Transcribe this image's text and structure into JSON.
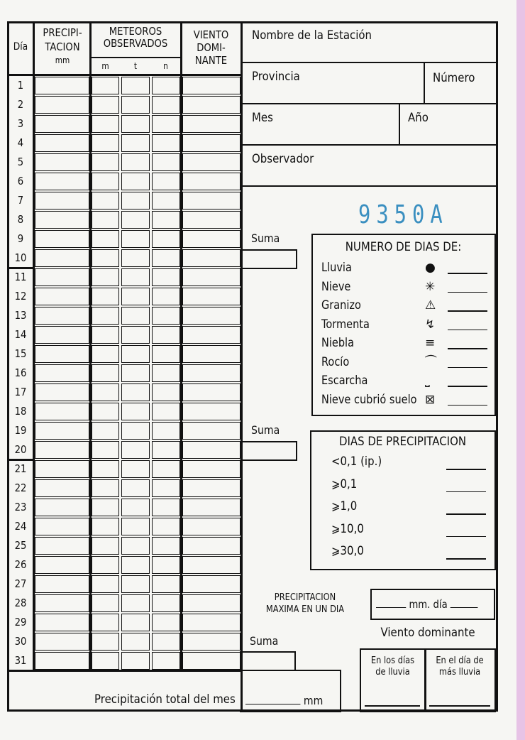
{
  "table_header": {
    "dia": "Día",
    "precip_1": "PRECIPI-",
    "precip_2": "TACION",
    "precip_unit": "mm",
    "meteoros_1": "METEOROS",
    "meteoros_2": "OBSERVADOS",
    "m": "m",
    "t": "t",
    "n": "n",
    "viento_1": "VIENTO",
    "viento_2": "DOMI-",
    "viento_3": "NANTE"
  },
  "days": [
    "1",
    "2",
    "3",
    "4",
    "5",
    "6",
    "7",
    "8",
    "9",
    "10",
    "11",
    "12",
    "13",
    "14",
    "15",
    "16",
    "17",
    "18",
    "19",
    "20",
    "21",
    "22",
    "23",
    "24",
    "25",
    "26",
    "27",
    "28",
    "29",
    "30",
    "31"
  ],
  "station": {
    "nombre": "Nombre de la Estación",
    "provincia": "Provincia",
    "numero": "Número",
    "mes": "Mes",
    "anio": "Año",
    "observador": "Observador"
  },
  "stamp": "9350A",
  "suma": "Suma",
  "numero_dias": {
    "title": "NUMERO DE DIAS DE:",
    "items": [
      {
        "label": "Lluvia",
        "icon": "filled-circle-icon"
      },
      {
        "label": "Nieve",
        "icon": "snow-asterisk-icon"
      },
      {
        "label": "Granizo",
        "icon": "hail-triangle-icon"
      },
      {
        "label": "Tormenta",
        "icon": "thunderstorm-icon"
      },
      {
        "label": "Niebla",
        "icon": "fog-lines-icon"
      },
      {
        "label": "Rocío",
        "icon": "dew-icon"
      },
      {
        "label": "Escarcha",
        "icon": "frost-icon"
      },
      {
        "label": "Nieve cubrió suelo",
        "icon": "snow-cover-icon"
      }
    ]
  },
  "dias_precip": {
    "title": "DIAS DE PRECIPITACION",
    "items": [
      "<0,1 (ip.)",
      "⩾0,1",
      "⩾1,0",
      "⩾10,0",
      "⩾30,0"
    ]
  },
  "max": {
    "label_1": "PRECIPITACION",
    "label_2": "MAXIMA EN UN DIA",
    "mm_dia": "mm. día"
  },
  "viento": {
    "title": "Viento dominante",
    "lluvia": [
      "En los días",
      "de lluvia"
    ],
    "mas_lluvia": [
      "En el día de",
      "más lluvia"
    ]
  },
  "total": {
    "label": "Precipitación total del mes",
    "unit": "mm"
  },
  "colors": {
    "stamp": "#3a8fc0",
    "ink": "#111111",
    "edge": "#e7c3e6"
  }
}
